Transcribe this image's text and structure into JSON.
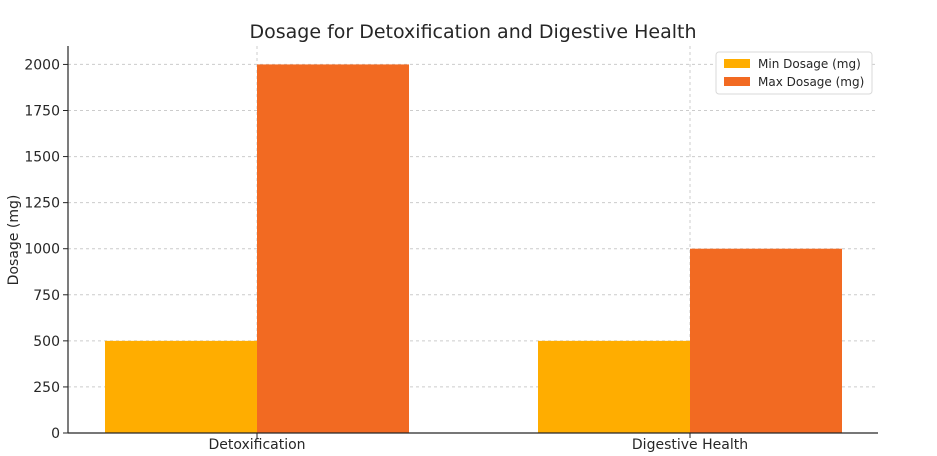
{
  "chart_data": {
    "type": "bar",
    "title": "Dosage for Detoxification and Digestive Health",
    "xlabel": "",
    "ylabel": "Dosage (mg)",
    "categories": [
      "Detoxification",
      "Digestive Health"
    ],
    "series": [
      {
        "name": "Min Dosage (mg)",
        "values": [
          500,
          500
        ],
        "color": "#FFAD00"
      },
      {
        "name": "Max Dosage (mg)",
        "values": [
          2000,
          1000
        ],
        "color": "#F26A22"
      }
    ],
    "ylim": [
      0,
      2100
    ],
    "yticks": [
      0,
      250,
      500,
      750,
      1000,
      1250,
      1500,
      1750,
      2000
    ],
    "grid": true,
    "legend": "top-right"
  }
}
